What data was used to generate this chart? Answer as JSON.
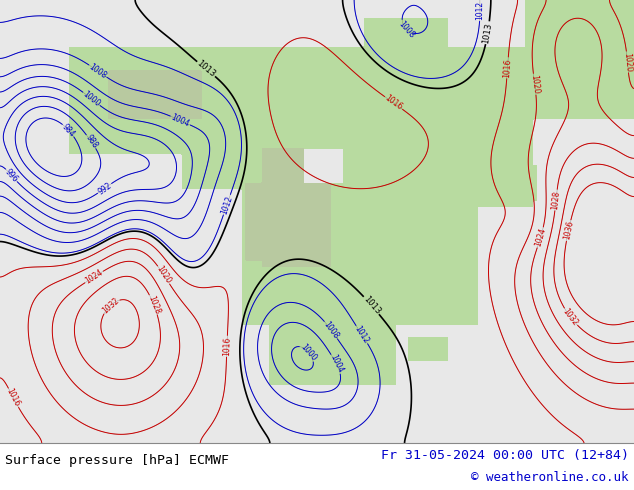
{
  "title_left": "Surface pressure [hPa] ECMWF",
  "title_right": "Fr 31-05-2024 00:00 UTC (12+84)",
  "copyright": "© weatheronline.co.uk",
  "bg_color": "#ffffff",
  "ocean_color": "#e8e8e8",
  "land_color": "#b8dba0",
  "mountain_color": "#c8c8b0",
  "title_fontsize": 9.5,
  "copyright_fontsize": 9,
  "text_color_left": "#000000",
  "text_color_right": "#0000cc",
  "copyright_color": "#0000cc",
  "red_contour_color": "#cc0000",
  "blue_contour_color": "#0000cc",
  "black_contour_color": "#000000"
}
